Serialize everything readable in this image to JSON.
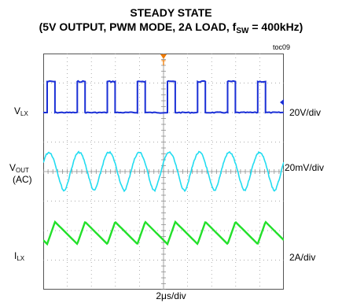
{
  "title": "STEADY STATE",
  "subtitle_prefix": "(5V OUTPUT, PWM MODE, 2A LOAD, f",
  "subtitle_sub": "SW",
  "subtitle_suffix": " = 400kHz)",
  "plate_id": "toc09",
  "x_scale": "2μs/div",
  "traces": [
    {
      "label_main": "V",
      "label_sub": "LX",
      "label_extra": "",
      "scale": "20V/div",
      "color": "#1a2fd6"
    },
    {
      "label_main": "V",
      "label_sub": "OUT",
      "label_extra": "(AC)",
      "scale": "20mV/div",
      "color": "#22dcf0"
    },
    {
      "label_main": "I",
      "label_sub": "LX",
      "label_extra": "",
      "scale": "2A/div",
      "color": "#22e02a"
    }
  ],
  "colors": {
    "trigger_marker": "#f07a00",
    "grid": "#909090"
  },
  "chart_data": {
    "type": "line",
    "title": "STEADY STATE",
    "subtitle": "(5V OUTPUT, PWM MODE, 2A LOAD, fSW = 400kHz)",
    "xlabel": "2μs/div",
    "grid": true,
    "divisions": {
      "x": 10,
      "y": 8
    },
    "time_per_div_us": 2,
    "switching_frequency_khz": 400,
    "period_us": 2.5,
    "series": [
      {
        "name": "VLX",
        "scale": "20V/div",
        "shape": "pulse",
        "high_v": 21,
        "low_v": 0,
        "duty_cycle": 0.26
      },
      {
        "name": "VOUT (AC)",
        "scale": "20mV/div",
        "shape": "ripple",
        "peak_to_peak_mv": 26
      },
      {
        "name": "ILX",
        "scale": "2A/div",
        "shape": "triangle",
        "peak_to_peak_a": 1.5
      }
    ]
  }
}
